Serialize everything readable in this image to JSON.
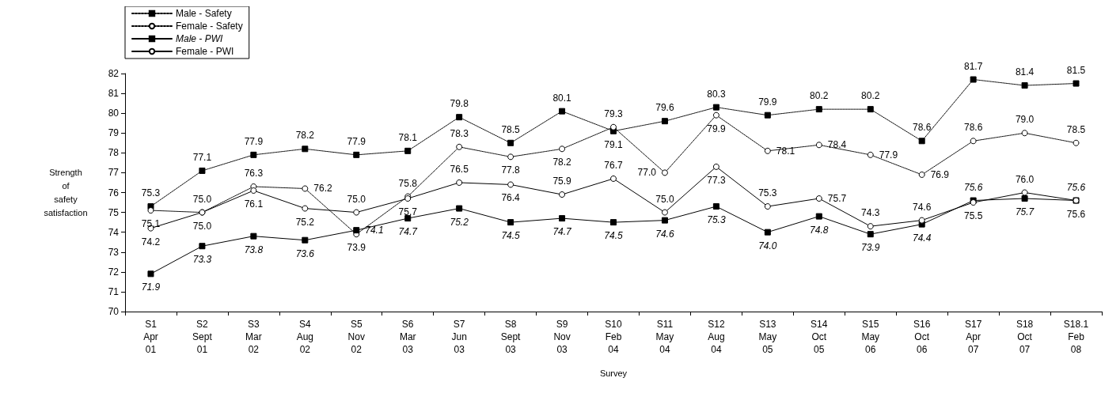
{
  "chart_data": {
    "type": "line",
    "xlabel": "Survey",
    "ylabel": "Strength\nof\nsafety\nsatisfaction",
    "categories": [
      "S1\nApr\n01",
      "S2\nSept\n01",
      "S3\nMar\n02",
      "S4\nAug\n02",
      "S5\nNov\n02",
      "S6\nMar\n03",
      "S7\nJun\n03",
      "S8\nSept\n03",
      "S9\nNov\n03",
      "S10\nFeb\n04",
      "S11\nMay\n04",
      "S12\nAug\n04",
      "S13\nMay\n05",
      "S14\nOct\n05",
      "S15\nMay\n06",
      "S16\nOct\n06",
      "S17\nApr\n07",
      "S18\nOct\n07",
      "S18.1\nFeb\n08"
    ],
    "series": [
      {
        "name": "Male - Safety",
        "color": "#000000",
        "marker": "square",
        "line_style": "dotted",
        "values": [
          75.3,
          77.1,
          77.9,
          78.2,
          77.9,
          78.1,
          79.8,
          78.5,
          80.1,
          79.1,
          79.6,
          80.3,
          79.9,
          80.2,
          80.2,
          78.6,
          81.7,
          81.4,
          81.5
        ],
        "value_labels": [
          "75.3",
          "77.1",
          "77.9",
          "78.2",
          "77.9",
          "78.1",
          "79.8",
          "78.5",
          "80.1",
          "79.1",
          "79.6",
          "80.3",
          "79.9",
          "80.2",
          "80.2",
          "78.6",
          "81.7",
          "81.4",
          "81.5"
        ]
      },
      {
        "name": "Female - Safety",
        "color": "#000000",
        "marker": "circle",
        "line_style": "dotted",
        "values": [
          75.1,
          75.0,
          76.3,
          76.2,
          73.9,
          75.8,
          78.3,
          77.8,
          78.2,
          79.3,
          77.0,
          79.9,
          78.1,
          78.4,
          77.9,
          76.9,
          78.6,
          79.0,
          78.5
        ],
        "value_labels": [
          "75.1",
          "75.0",
          "76.3",
          "76.2",
          "73.9",
          "75.8",
          "78.3",
          "77.8",
          "78.2",
          "79.3",
          "77.0",
          "79.9",
          "78.1",
          "78.4",
          "77.9",
          "76.9",
          "78.6",
          "79.0",
          "78.5"
        ]
      },
      {
        "name": "Male - PWI",
        "color": "#000000",
        "marker": "square",
        "line_style": "solid",
        "values": [
          71.9,
          73.3,
          73.8,
          73.6,
          74.1,
          74.7,
          75.2,
          74.5,
          74.7,
          74.5,
          74.6,
          75.3,
          74.0,
          74.8,
          73.9,
          74.4,
          75.6,
          75.7,
          75.6
        ],
        "value_labels": [
          "71.9",
          "73.3",
          "73.8",
          "73.6",
          "74.1",
          "74.7",
          "75.2",
          "74.5",
          "74.7",
          "74.5",
          "74.6",
          "75.3",
          "74.0",
          "74.8",
          "73.9",
          "74.4",
          "75.6",
          "75.7",
          "75.6"
        ]
      },
      {
        "name": "Female - PWI",
        "color": "#000000",
        "marker": "circle",
        "line_style": "solid",
        "values": [
          74.2,
          75.0,
          76.1,
          75.2,
          75.0,
          75.7,
          76.5,
          76.4,
          75.9,
          76.7,
          75.0,
          77.3,
          75.3,
          75.7,
          74.3,
          74.6,
          75.5,
          76.0,
          75.6
        ],
        "value_labels": [
          "74.2",
          "75.0",
          "76.1",
          "75.2",
          "75.0",
          "75.7",
          "76.5",
          "76.4",
          "75.9",
          "76.7",
          "75.0",
          "77.3",
          "75.3",
          "75.7",
          "74.3",
          "74.6",
          "75.5",
          "76.0",
          "75.6"
        ]
      }
    ],
    "ylim": [
      70,
      82
    ],
    "yticks": [
      70,
      71,
      72,
      73,
      74,
      75,
      76,
      77,
      78,
      79,
      80,
      81,
      82
    ],
    "grid": false,
    "legend": "top left"
  }
}
